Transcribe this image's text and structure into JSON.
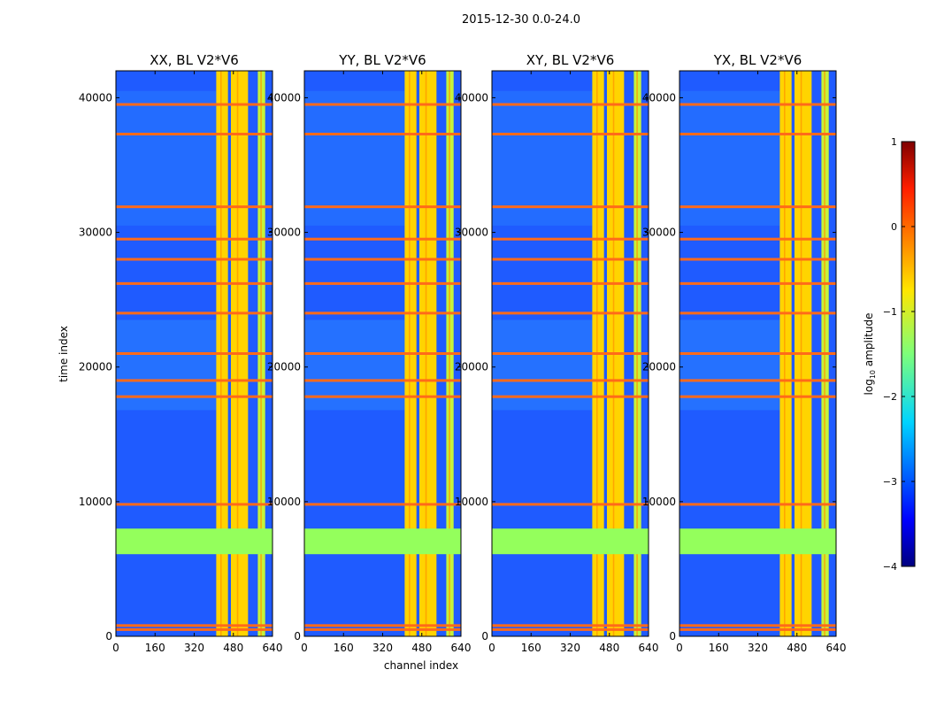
{
  "chart_data": {
    "type": "heatmap",
    "suptitle": "2015-12-30 0.0-24.0",
    "xlabel": "channel index",
    "ylabel": "time index",
    "xlim": [
      0,
      640
    ],
    "ylim": [
      0,
      42000
    ],
    "xticks": [
      "0",
      "160",
      "320",
      "480",
      "640"
    ],
    "yticks": [
      "0",
      "10000",
      "20000",
      "30000",
      "40000"
    ],
    "panels": [
      {
        "title": "XX, BL V2*V6",
        "pol": "XX"
      },
      {
        "title": "YY, BL V2*V6",
        "pol": "YY"
      },
      {
        "title": "XY, BL V2*V6",
        "pol": "XY"
      },
      {
        "title": "YX, BL V2*V6",
        "pol": "YX"
      }
    ],
    "rfi_channel_bands": [
      [
        410,
        458
      ],
      [
        470,
        540
      ],
      [
        580,
        610
      ]
    ],
    "flagged_time_range": [
      6100,
      8000
    ],
    "rfi_time_rows": [
      500,
      800,
      9800,
      17800,
      19000,
      21000,
      24000,
      26200,
      28000,
      29500,
      31900,
      37300,
      39500
    ],
    "colorbar": {
      "label": "log$_{10}$ amplitude",
      "label_main": "log",
      "label_sub": "10",
      "label_rest": " amplitude",
      "vmin": -4,
      "vmax": 1,
      "ticks": [
        "1",
        "0",
        "−1",
        "−2",
        "−3",
        "−4"
      ],
      "colormap": "jet"
    }
  }
}
